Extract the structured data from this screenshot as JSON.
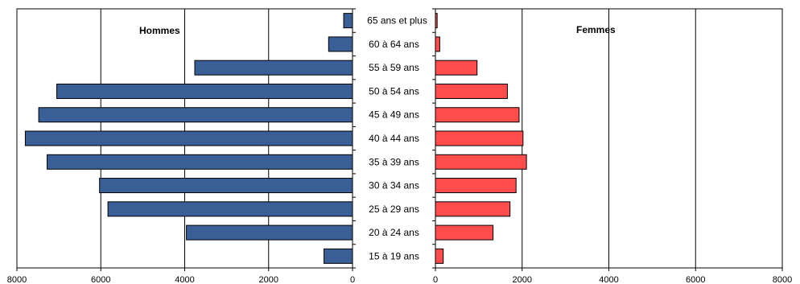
{
  "chart_data": {
    "type": "bar",
    "orientation": "horizontal",
    "layout": "population-pyramid",
    "categories": [
      "65 ans et plus",
      "60 à 64 ans",
      "55 à 59 ans",
      "50 à 54 ans",
      "45 à 49 ans",
      "40 à 44 ans",
      "35 à 39 ans",
      "30 à 34 ans",
      "25 à 29 ans",
      "20 à 24 ans",
      "15 à 19 ans"
    ],
    "series": [
      {
        "name": "Hommes",
        "color": "#3a5f96",
        "values": [
          210,
          570,
          3760,
          7050,
          7480,
          7800,
          7280,
          6030,
          5830,
          3960,
          680
        ]
      },
      {
        "name": "Femmes",
        "color": "#ff4d4d",
        "values": [
          40,
          100,
          960,
          1660,
          1930,
          2020,
          2100,
          1860,
          1720,
          1330,
          180
        ]
      }
    ],
    "left_xticks": [
      "8000",
      "6000",
      "4000",
      "2000",
      "0"
    ],
    "right_xticks": [
      "0",
      "2000",
      "4000",
      "6000",
      "8000"
    ],
    "xlim": [
      0,
      8000
    ],
    "grid": true
  }
}
